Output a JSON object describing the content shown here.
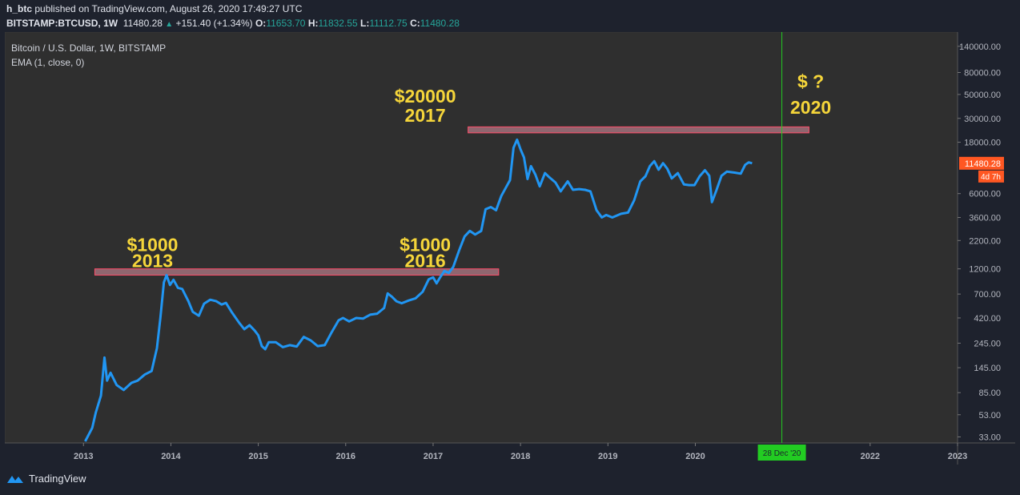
{
  "header": {
    "publisher": "h_btc",
    "published_text": "published on TradingView.com, August 26, 2020 17:49:27 UTC",
    "symbol": "BITSTAMP:BTCUSD, 1W",
    "last": "11480.28",
    "change": "+151.40 (+1.34%)",
    "o_label": "O:",
    "o_val": "11653.70",
    "h_label": "H:",
    "h_val": "11832.55",
    "l_label": "L:",
    "l_val": "11112.75",
    "c_label": "C:",
    "c_val": "11480.28"
  },
  "legend": {
    "title": "Bitcoin / U.S. Dollar, 1W, BITSTAMP",
    "indicator": "EMA (1, close, 0)"
  },
  "colors": {
    "background": "#1e222d",
    "pane": "#2f2f2f",
    "line": "#2196f3",
    "annotation": "#f5d53a",
    "zone_fill": "#b07a86",
    "zone_border": "#ff4d6a",
    "vline": "#22cc22",
    "price_tag": "#ff5722"
  },
  "footer": {
    "brand": "TradingView"
  },
  "chart_data": {
    "type": "line",
    "title": "Bitcoin / U.S. Dollar, 1W, BITSTAMP",
    "yscale": "log",
    "ylim": [
      29,
      190000
    ],
    "xlim": [
      2012.1,
      2023.0
    ],
    "x_ticks": [
      "2013",
      "2014",
      "2015",
      "2016",
      "2017",
      "2018",
      "2019",
      "2020",
      "2022",
      "2023"
    ],
    "x_tick_values": [
      2013,
      2014,
      2015,
      2016,
      2017,
      2018,
      2019,
      2020,
      2022,
      2023
    ],
    "y_ticks": [
      "140000.00",
      "80000.00",
      "50000.00",
      "30000.00",
      "18000.00",
      "6000.00",
      "3600.00",
      "2200.00",
      "1200.00",
      "700.00",
      "420.00",
      "245.00",
      "145.00",
      "85.00",
      "53.00",
      "33.00"
    ],
    "y_tick_values": [
      140000,
      80000,
      50000,
      30000,
      18000,
      6000,
      3600,
      2200,
      1200,
      700,
      420,
      245,
      145,
      85,
      53,
      33
    ],
    "last_price": {
      "value": 11480.28,
      "label": "11480.28",
      "countdown": "4d 7h"
    },
    "marker": {
      "x": 2020.99,
      "label": "28 Dec '20"
    },
    "zones": [
      {
        "x0": 2013.13,
        "x1": 2017.75,
        "low": 1050,
        "high": 1200
      },
      {
        "x0": 2017.4,
        "x1": 2021.3,
        "low": 22000,
        "high": 25000
      }
    ],
    "annotations": [
      {
        "x": 2013.79,
        "y": 1750,
        "text": "$1000"
      },
      {
        "x": 2013.79,
        "y": 1250,
        "text": "2013"
      },
      {
        "x": 2016.91,
        "y": 1750,
        "text": "$1000"
      },
      {
        "x": 2016.91,
        "y": 1250,
        "text": "2016"
      },
      {
        "x": 2016.91,
        "y": 42000,
        "text": "$20000"
      },
      {
        "x": 2016.91,
        "y": 28000,
        "text": "2017"
      },
      {
        "x": 2021.32,
        "y": 58000,
        "text": "$ ?"
      },
      {
        "x": 2021.32,
        "y": 33000,
        "text": "2020"
      }
    ],
    "series": [
      {
        "name": "BTCUSD EMA(1)",
        "points": [
          [
            2013.02,
            30
          ],
          [
            2013.1,
            40
          ],
          [
            2013.14,
            55
          ],
          [
            2013.2,
            80
          ],
          [
            2013.24,
            180
          ],
          [
            2013.27,
            110
          ],
          [
            2013.31,
            130
          ],
          [
            2013.38,
            100
          ],
          [
            2013.46,
            90
          ],
          [
            2013.55,
            105
          ],
          [
            2013.62,
            110
          ],
          [
            2013.7,
            125
          ],
          [
            2013.78,
            135
          ],
          [
            2013.84,
            220
          ],
          [
            2013.88,
            420
          ],
          [
            2013.92,
            900
          ],
          [
            2013.95,
            1050
          ],
          [
            2013.99,
            850
          ],
          [
            2014.03,
            950
          ],
          [
            2014.08,
            800
          ],
          [
            2014.13,
            780
          ],
          [
            2014.2,
            600
          ],
          [
            2014.25,
            480
          ],
          [
            2014.32,
            440
          ],
          [
            2014.38,
            570
          ],
          [
            2014.45,
            620
          ],
          [
            2014.52,
            600
          ],
          [
            2014.58,
            560
          ],
          [
            2014.63,
            580
          ],
          [
            2014.7,
            470
          ],
          [
            2014.78,
            380
          ],
          [
            2014.84,
            330
          ],
          [
            2014.9,
            360
          ],
          [
            2014.96,
            320
          ],
          [
            2015.0,
            290
          ],
          [
            2015.04,
            230
          ],
          [
            2015.08,
            215
          ],
          [
            2015.12,
            250
          ],
          [
            2015.2,
            250
          ],
          [
            2015.28,
            225
          ],
          [
            2015.36,
            235
          ],
          [
            2015.44,
            228
          ],
          [
            2015.52,
            280
          ],
          [
            2015.6,
            260
          ],
          [
            2015.68,
            230
          ],
          [
            2015.76,
            235
          ],
          [
            2015.84,
            310
          ],
          [
            2015.92,
            400
          ],
          [
            2015.97,
            420
          ],
          [
            2016.04,
            390
          ],
          [
            2016.12,
            420
          ],
          [
            2016.2,
            415
          ],
          [
            2016.28,
            450
          ],
          [
            2016.36,
            460
          ],
          [
            2016.44,
            520
          ],
          [
            2016.48,
            710
          ],
          [
            2016.53,
            660
          ],
          [
            2016.58,
            600
          ],
          [
            2016.64,
            575
          ],
          [
            2016.72,
            610
          ],
          [
            2016.8,
            640
          ],
          [
            2016.88,
            735
          ],
          [
            2016.95,
            960
          ],
          [
            2017.0,
            1000
          ],
          [
            2017.04,
            880
          ],
          [
            2017.08,
            1000
          ],
          [
            2017.13,
            1150
          ],
          [
            2017.18,
            1100
          ],
          [
            2017.23,
            1250
          ],
          [
            2017.3,
            1800
          ],
          [
            2017.36,
            2400
          ],
          [
            2017.42,
            2700
          ],
          [
            2017.48,
            2500
          ],
          [
            2017.55,
            2700
          ],
          [
            2017.6,
            4300
          ],
          [
            2017.66,
            4500
          ],
          [
            2017.72,
            4200
          ],
          [
            2017.78,
            5700
          ],
          [
            2017.84,
            7000
          ],
          [
            2017.88,
            8000
          ],
          [
            2017.92,
            16000
          ],
          [
            2017.96,
            19000
          ],
          [
            2018.0,
            15500
          ],
          [
            2018.04,
            13000
          ],
          [
            2018.08,
            8200
          ],
          [
            2018.12,
            10800
          ],
          [
            2018.17,
            9000
          ],
          [
            2018.22,
            7000
          ],
          [
            2018.28,
            9300
          ],
          [
            2018.33,
            8500
          ],
          [
            2018.4,
            7600
          ],
          [
            2018.46,
            6300
          ],
          [
            2018.54,
            7800
          ],
          [
            2018.6,
            6500
          ],
          [
            2018.67,
            6600
          ],
          [
            2018.74,
            6500
          ],
          [
            2018.8,
            6300
          ],
          [
            2018.87,
            4200
          ],
          [
            2018.93,
            3600
          ],
          [
            2018.98,
            3800
          ],
          [
            2019.05,
            3600
          ],
          [
            2019.15,
            3900
          ],
          [
            2019.23,
            4000
          ],
          [
            2019.3,
            5200
          ],
          [
            2019.37,
            7800
          ],
          [
            2019.43,
            8700
          ],
          [
            2019.48,
            10800
          ],
          [
            2019.53,
            12000
          ],
          [
            2019.58,
            10000
          ],
          [
            2019.63,
            11500
          ],
          [
            2019.68,
            10200
          ],
          [
            2019.73,
            8300
          ],
          [
            2019.8,
            9300
          ],
          [
            2019.87,
            7300
          ],
          [
            2019.93,
            7200
          ],
          [
            2019.99,
            7200
          ],
          [
            2020.05,
            8700
          ],
          [
            2020.11,
            9900
          ],
          [
            2020.16,
            8800
          ],
          [
            2020.19,
            5000
          ],
          [
            2020.24,
            6400
          ],
          [
            2020.3,
            8800
          ],
          [
            2020.36,
            9600
          ],
          [
            2020.45,
            9400
          ],
          [
            2020.52,
            9200
          ],
          [
            2020.57,
            11100
          ],
          [
            2020.61,
            11700
          ],
          [
            2020.65,
            11480
          ]
        ]
      }
    ]
  }
}
